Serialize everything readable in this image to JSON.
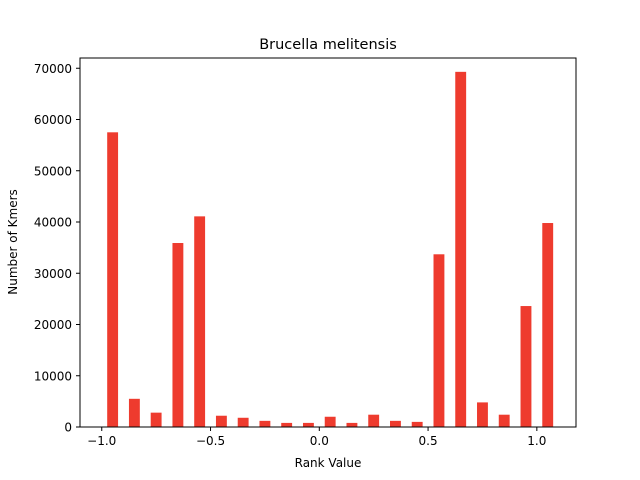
{
  "chart_data": {
    "type": "bar",
    "title": "Brucella melitensis",
    "xlabel": "Rank Value",
    "ylabel": "Number of Kmers",
    "xlim": [
      -1.1,
      1.18
    ],
    "ylim": [
      0,
      72000
    ],
    "xticks": [
      -1.0,
      -0.5,
      0.0,
      0.5,
      1.0
    ],
    "xtick_labels": [
      "−1.0",
      "−0.5",
      "0.0",
      "0.5",
      "1.0"
    ],
    "yticks": [
      0,
      10000,
      20000,
      30000,
      40000,
      50000,
      60000,
      70000
    ],
    "ytick_labels": [
      "0",
      "10000",
      "20000",
      "30000",
      "40000",
      "50000",
      "60000",
      "70000"
    ],
    "bar_width": 0.05,
    "bar_color": "#ee3b2e",
    "grid": false,
    "legend": "none",
    "x": [
      -0.95,
      -0.85,
      -0.75,
      -0.65,
      -0.55,
      -0.45,
      -0.35,
      -0.25,
      -0.15,
      -0.05,
      0.05,
      0.15,
      0.25,
      0.35,
      0.45,
      0.55,
      0.65,
      0.75,
      0.85,
      0.95,
      1.05
    ],
    "values": [
      57500,
      5500,
      2800,
      35900,
      41100,
      2200,
      1800,
      1200,
      800,
      800,
      2000,
      800,
      2400,
      1200,
      1000,
      33700,
      69300,
      4800,
      2400,
      23600,
      39800
    ]
  }
}
